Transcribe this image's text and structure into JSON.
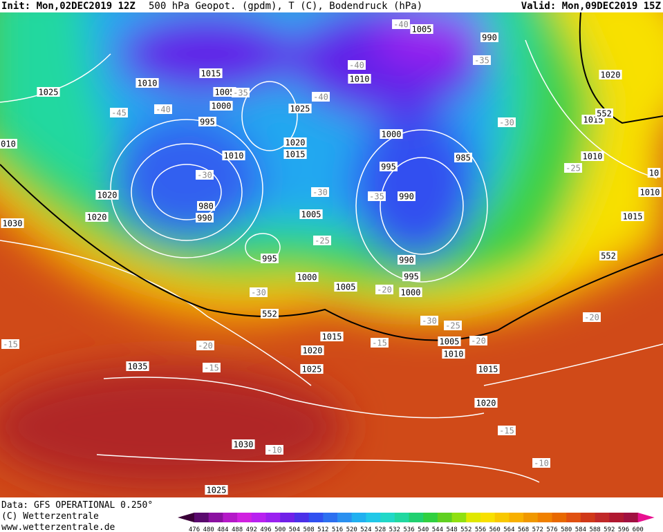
{
  "header": {
    "init": "Init: Mon,02DEC2019 12Z",
    "title": "500 hPa Geopot. (gpdm), T (C), Bodendruck (hPa)",
    "valid": "Valid: Mon,09DEC2019 15Z"
  },
  "footer": {
    "lines": [
      "Data: GFS OPERATIONAL 0.250°",
      "(C) Wetterzentrale",
      "www.wetterzentrale.de"
    ]
  },
  "colorbar": {
    "levels": [
      476,
      480,
      484,
      488,
      492,
      496,
      500,
      504,
      508,
      512,
      516,
      520,
      524,
      528,
      532,
      536,
      540,
      544,
      548,
      552,
      556,
      560,
      564,
      568,
      572,
      576,
      580,
      584,
      588,
      592,
      596,
      600
    ],
    "colors": [
      "#3a0038",
      "#5a0a6e",
      "#8a10a0",
      "#b418c8",
      "#d020e0",
      "#b820f0",
      "#9a20f0",
      "#7020e8",
      "#4a30e8",
      "#3050f0",
      "#2c70f0",
      "#2a90f0",
      "#20b0f0",
      "#20c8e8",
      "#20d8c8",
      "#20d8a0",
      "#20d070",
      "#30d040",
      "#60d020",
      "#90e010",
      "#e0e800",
      "#f8e000",
      "#f8c800",
      "#f8b000",
      "#f09800",
      "#f08000",
      "#e86800",
      "#e05010",
      "#d03818",
      "#c02828",
      "#b01830",
      "#a01040",
      "#e81090"
    ]
  },
  "pressure_labels": [
    "1005",
    "990",
    "1020",
    "1015",
    "1010",
    "1025",
    "1005",
    "1000",
    "1010",
    "1025",
    "995",
    "1015",
    "1020",
    "1015",
    "1010",
    "1000",
    "1010",
    "995",
    "985",
    "10",
    "1020",
    "990",
    "1010",
    "1030",
    "1020",
    "980",
    "990",
    "1005",
    "1015",
    "995",
    "990",
    "995",
    "1000",
    "1005",
    "1000",
    "1015",
    "1005",
    "1020",
    "1010",
    "1035",
    "1025",
    "1015",
    "1020",
    "1030",
    "1025",
    "010"
  ],
  "temperature_labels": [
    "-40",
    "-35",
    "-40",
    "-45",
    "-40",
    "-40",
    "-35",
    "-30",
    "-25",
    "-30",
    "-30",
    "-35",
    "-25",
    "-30",
    "-20",
    "-30",
    "-25",
    "-20",
    "-20",
    "-15",
    "-20",
    "-15",
    "-15",
    "-15",
    "-10",
    "-10"
  ],
  "height_labels": [
    "552",
    "552",
    "552"
  ]
}
